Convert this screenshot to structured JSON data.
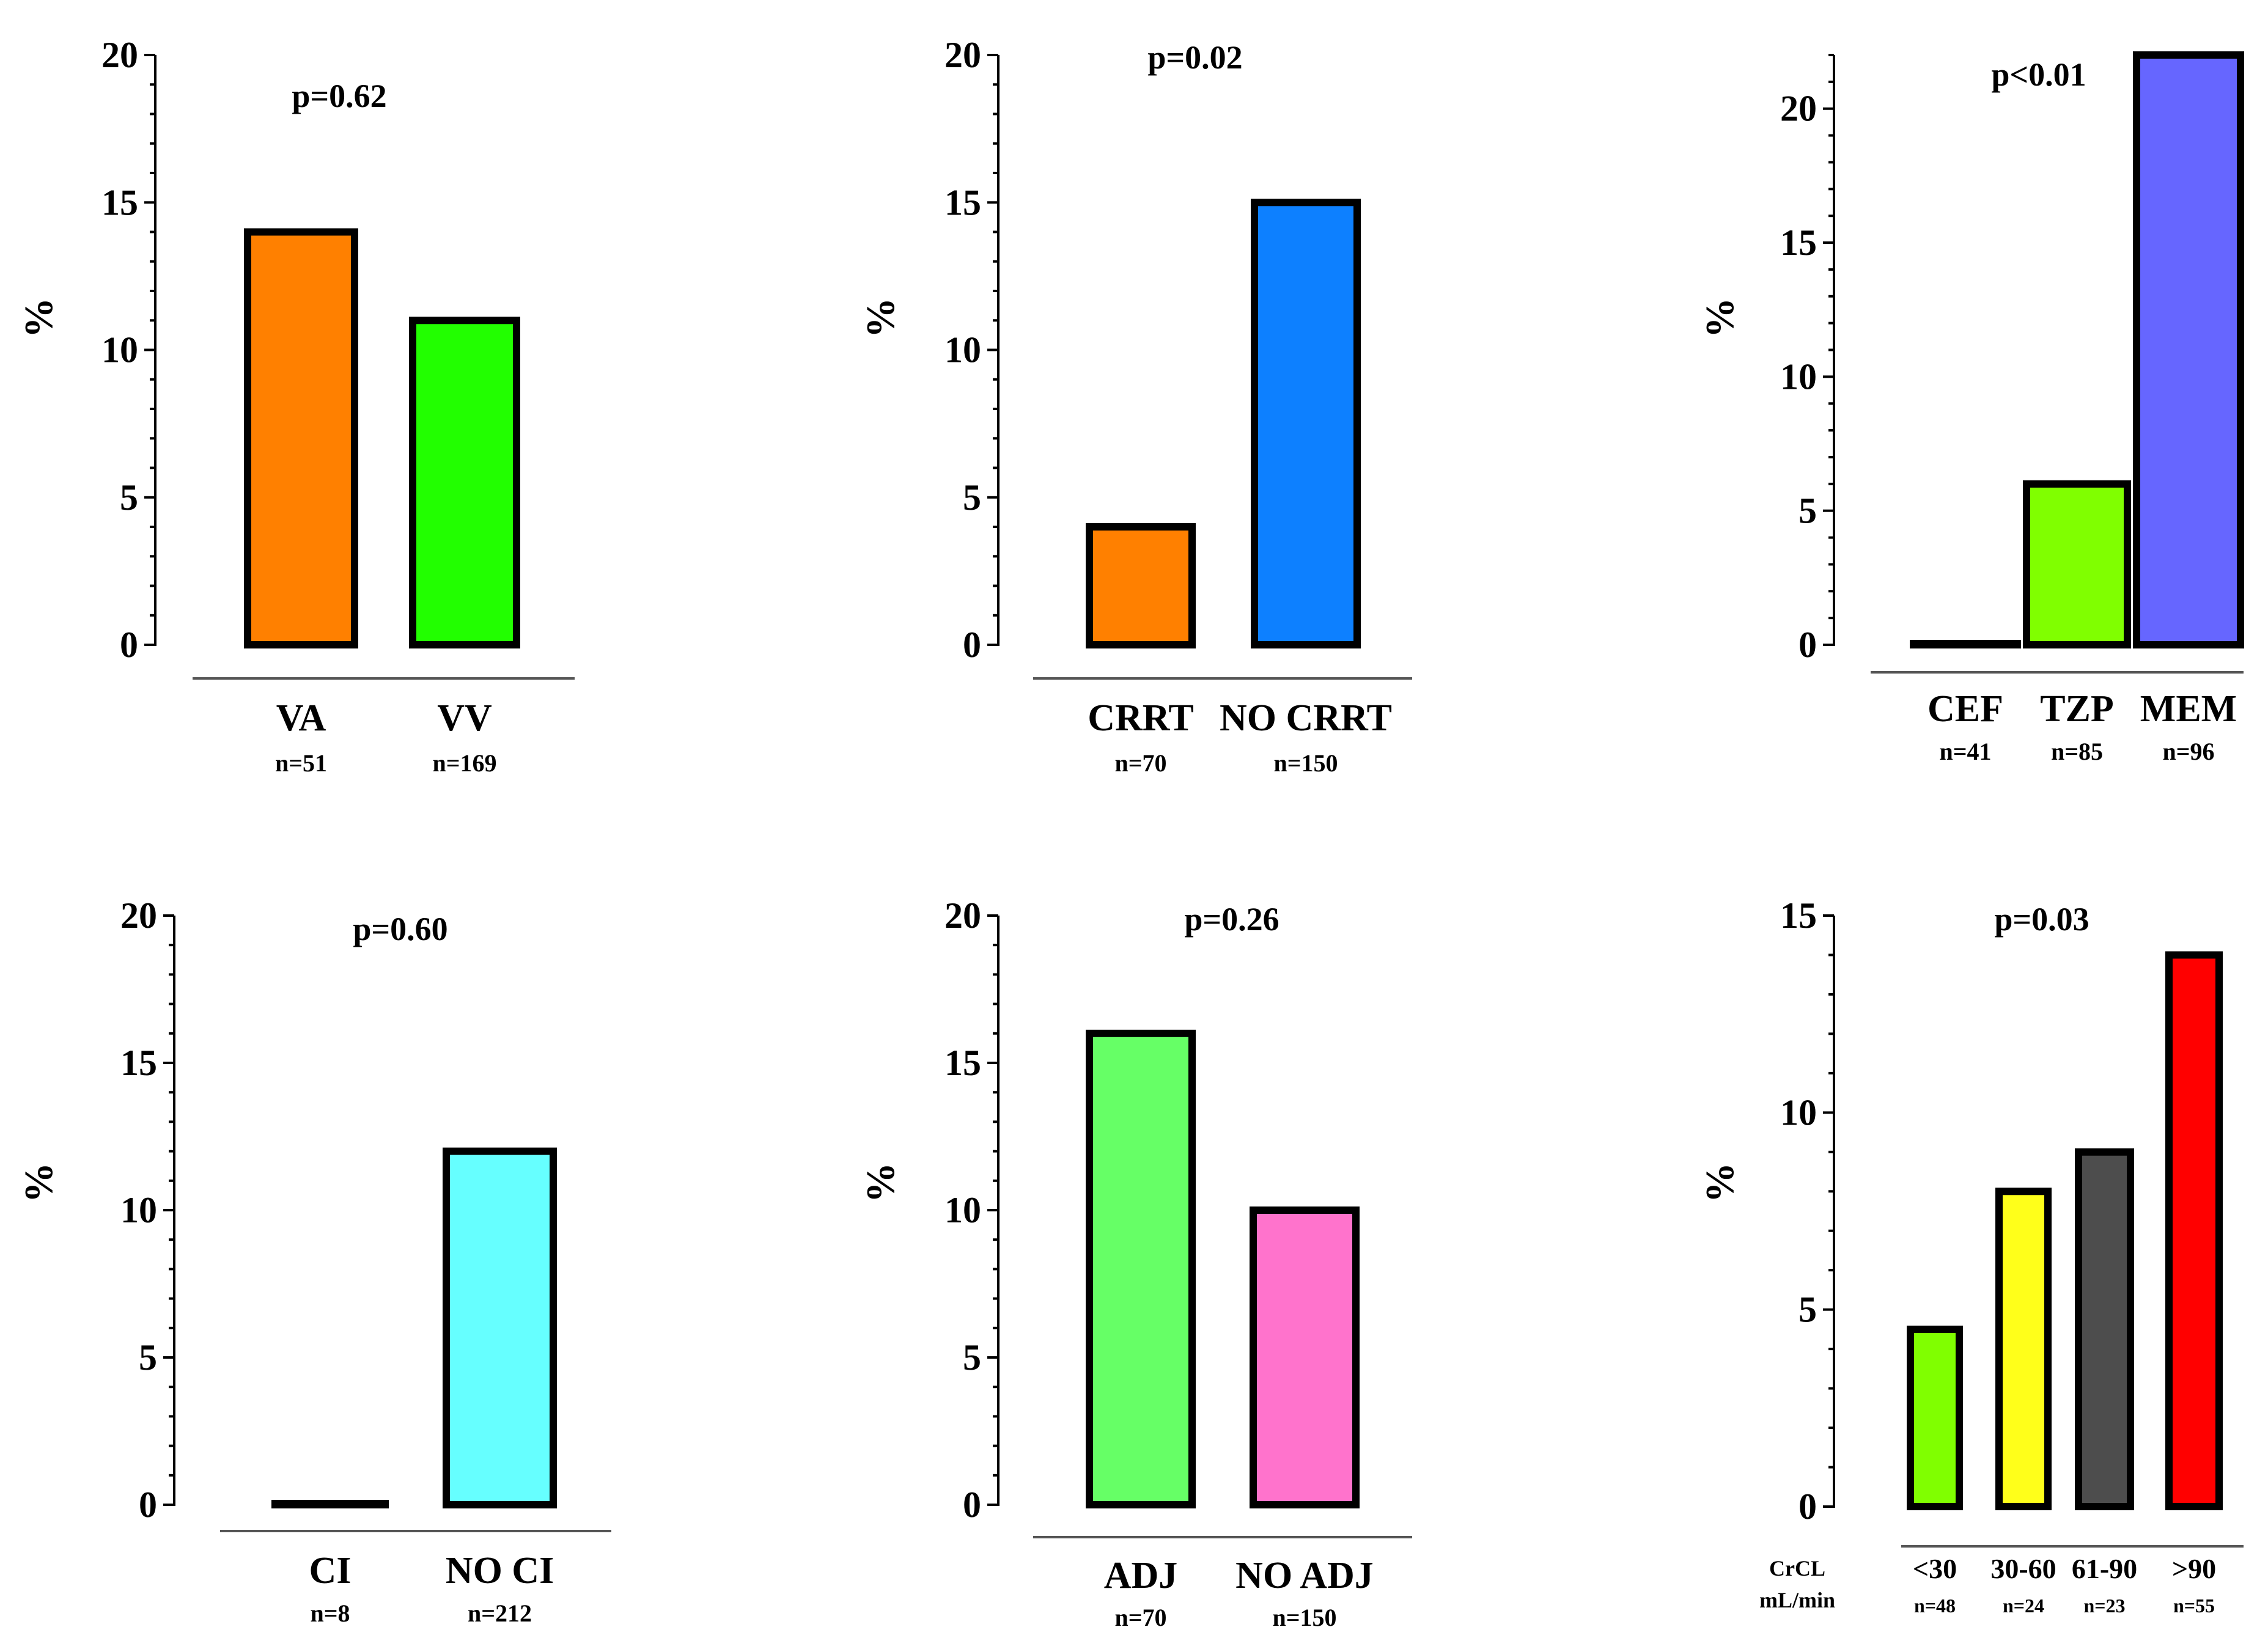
{
  "chart_data": [
    {
      "type": "bar",
      "title": "p=0.62",
      "ylabel": "%",
      "ylim": [
        0,
        20
      ],
      "yticks": [
        0,
        5,
        10,
        15,
        20
      ],
      "categories": [
        "VA",
        "VV"
      ],
      "counts": [
        "n=51",
        "n=169"
      ],
      "values": [
        14,
        11
      ],
      "colors": [
        "#ff8000",
        "#22ff00"
      ],
      "extra_label": []
    },
    {
      "type": "bar",
      "title": "p=0.02",
      "ylabel": "%",
      "ylim": [
        0,
        20
      ],
      "yticks": [
        0,
        5,
        10,
        15,
        20
      ],
      "categories": [
        "CRRT",
        "NO CRRT"
      ],
      "counts": [
        "n=70",
        "n=150"
      ],
      "values": [
        4,
        15
      ],
      "colors": [
        "#ff8000",
        "#0d80ff"
      ],
      "extra_label": []
    },
    {
      "type": "bar",
      "title": "p<0.01",
      "ylabel": "%",
      "ylim": [
        0,
        22
      ],
      "yticks": [
        0,
        5,
        10,
        15,
        20
      ],
      "categories": [
        "CEF",
        "TZP",
        "MEM"
      ],
      "counts": [
        "n=41",
        "n=85",
        "n=96"
      ],
      "values": [
        0,
        6,
        22
      ],
      "colors": [
        "#ffffff",
        "#80ff00",
        "#6666ff"
      ],
      "extra_label": []
    },
    {
      "type": "bar",
      "title": "p=0.60",
      "ylabel": "%",
      "ylim": [
        0,
        20
      ],
      "yticks": [
        0,
        5,
        10,
        15,
        20
      ],
      "categories": [
        "CI",
        "NO CI"
      ],
      "counts": [
        "n=8",
        "n=212"
      ],
      "values": [
        0,
        12
      ],
      "colors": [
        "#ffffff",
        "#66ffff"
      ],
      "extra_label": []
    },
    {
      "type": "bar",
      "title": "p=0.26",
      "ylabel": "%",
      "ylim": [
        0,
        20
      ],
      "yticks": [
        0,
        5,
        10,
        15,
        20
      ],
      "categories": [
        "ADJ",
        "NO ADJ"
      ],
      "counts": [
        "n=70",
        "n=150"
      ],
      "values": [
        16,
        10
      ],
      "colors": [
        "#66ff66",
        "#ff73cc"
      ],
      "extra_label": []
    },
    {
      "type": "bar",
      "title": "p=0.03",
      "ylabel": "%",
      "ylim": [
        0,
        15
      ],
      "yticks": [
        0,
        5,
        10,
        15
      ],
      "categories": [
        "<30",
        "30-60",
        "61-90",
        ">90"
      ],
      "counts": [
        "n=48",
        "n=24",
        "n=23",
        "n=55"
      ],
      "values": [
        4.5,
        8,
        9,
        14
      ],
      "colors": [
        "#80ff00",
        "#ffff1a",
        "#4d4d4d",
        "#ff0000"
      ],
      "extra_label": [
        "CrCL",
        "mL/min"
      ]
    }
  ]
}
